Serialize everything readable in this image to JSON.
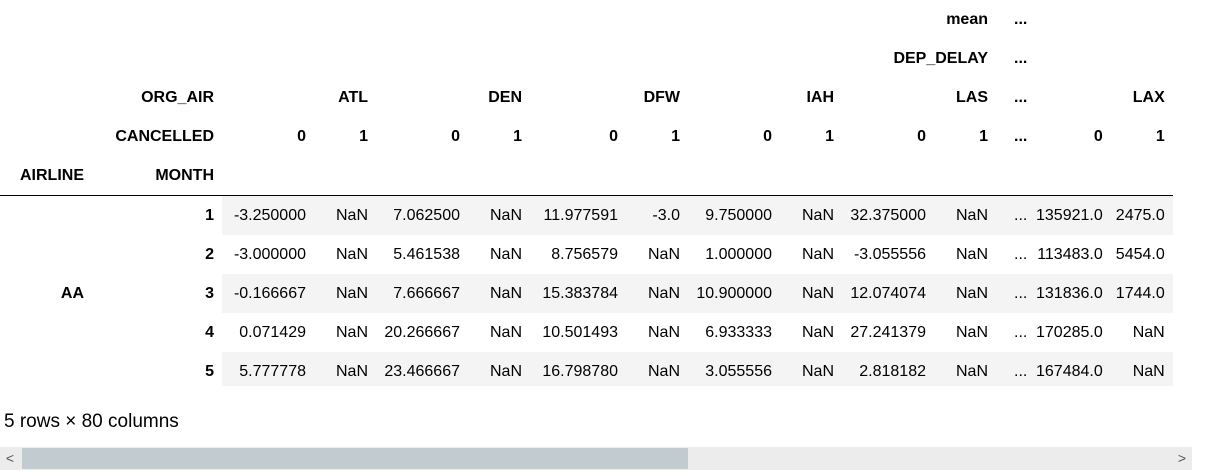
{
  "columns": {
    "level0_name": "mean",
    "level1_name": "DEP_DELAY",
    "level2_name": "ORG_AIR",
    "level3_name": "CANCELLED",
    "ellipsis": "...",
    "airports": [
      "ATL",
      "DEN",
      "DFW",
      "IAH",
      "LAS",
      "LAX"
    ],
    "cancelled_values": [
      "0",
      "1"
    ]
  },
  "index": {
    "names": [
      "AIRLINE",
      "MONTH"
    ],
    "airline": "AA"
  },
  "rows": [
    {
      "month": "1",
      "cells": [
        "-3.250000",
        "NaN",
        "7.062500",
        "NaN",
        "11.977591",
        "-3.0",
        "9.750000",
        "NaN",
        "32.375000",
        "NaN",
        "...",
        "135921.0",
        "2475.0"
      ]
    },
    {
      "month": "2",
      "cells": [
        "-3.000000",
        "NaN",
        "5.461538",
        "NaN",
        "8.756579",
        "NaN",
        "1.000000",
        "NaN",
        "-3.055556",
        "NaN",
        "...",
        "113483.0",
        "5454.0"
      ]
    },
    {
      "month": "3",
      "cells": [
        "-0.166667",
        "NaN",
        "7.666667",
        "NaN",
        "15.383784",
        "NaN",
        "10.900000",
        "NaN",
        "12.074074",
        "NaN",
        "...",
        "131836.0",
        "1744.0"
      ]
    },
    {
      "month": "4",
      "cells": [
        "0.071429",
        "NaN",
        "20.266667",
        "NaN",
        "10.501493",
        "NaN",
        "6.933333",
        "NaN",
        "27.241379",
        "NaN",
        "...",
        "170285.0",
        "NaN"
      ]
    },
    {
      "month": "5",
      "cells": [
        "5.777778",
        "NaN",
        "23.466667",
        "NaN",
        "16.798780",
        "NaN",
        "3.055556",
        "NaN",
        "2.818182",
        "NaN",
        "...",
        "167484.0",
        "NaN"
      ]
    }
  ],
  "shape_text": "5 rows × 80 columns",
  "scrollbar": {
    "left_arrow": "<",
    "right_arrow": ">",
    "thumb_fraction": 0.58
  }
}
